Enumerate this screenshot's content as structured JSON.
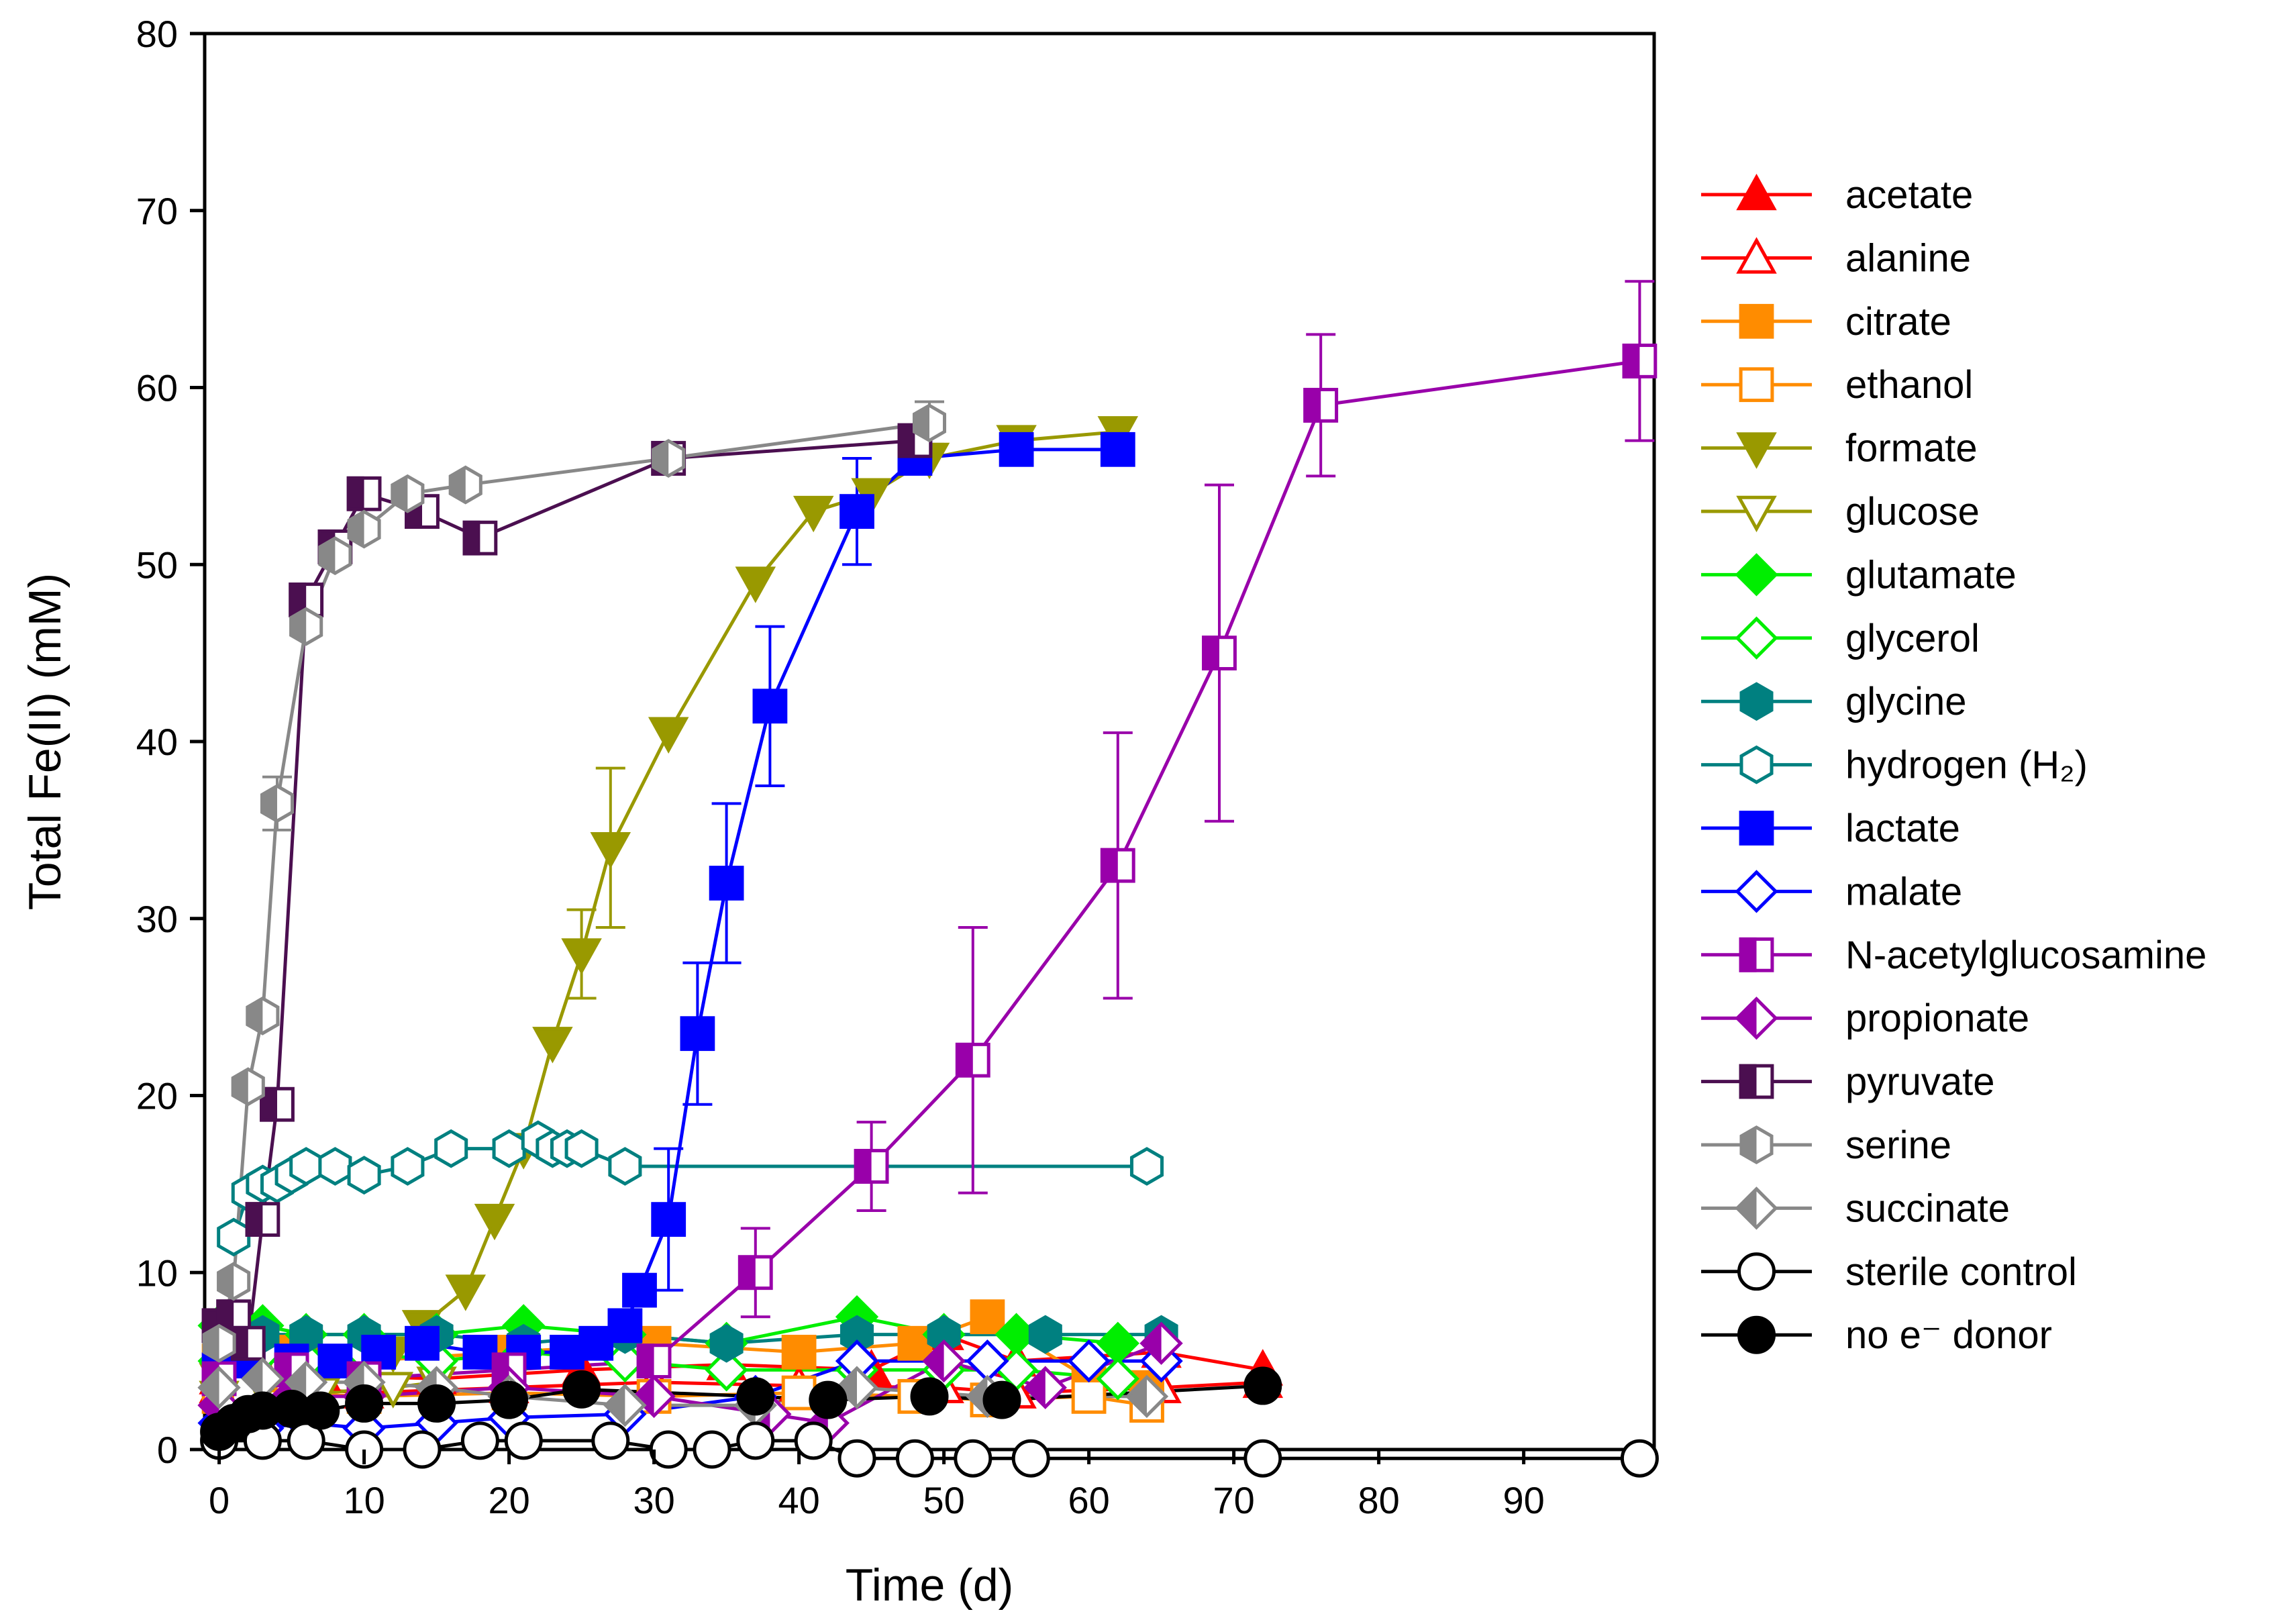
{
  "chart_data": {
    "type": "line",
    "title": "",
    "xlabel": "Time (d)",
    "ylabel": "Total Fe(II) (mM)",
    "xlim": [
      -1,
      99
    ],
    "ylim": [
      0,
      80
    ],
    "xticks": [
      0,
      10,
      20,
      30,
      40,
      50,
      60,
      70,
      80,
      90
    ],
    "yticks": [
      0,
      10,
      20,
      30,
      40,
      50,
      60,
      70,
      80
    ],
    "grid": false,
    "legend_position": "right",
    "series": [
      {
        "name": "acetate",
        "color": "#ff0000",
        "marker": "triangle-up",
        "fill": "filled",
        "x": [
          0,
          1,
          3,
          7,
          15,
          25,
          35,
          45,
          50,
          55,
          65,
          72
        ],
        "y": [
          4,
          5,
          4.5,
          4.2,
          4,
          4.5,
          4.8,
          4.5,
          6.5,
          5,
          5.5,
          4.5
        ]
      },
      {
        "name": "alanine",
        "color": "#ff0000",
        "marker": "triangle-up",
        "fill": "open",
        "x": [
          0,
          2,
          5,
          10,
          20,
          30,
          40,
          50,
          55,
          65,
          72
        ],
        "y": [
          3.5,
          3.8,
          3.5,
          3.2,
          3.5,
          3.8,
          3.6,
          3.5,
          3.2,
          3.5,
          3.8
        ]
      },
      {
        "name": "citrate",
        "color": "#ff8c00",
        "marker": "square",
        "fill": "filled",
        "x": [
          0,
          2,
          5,
          10,
          20,
          30,
          40,
          48,
          53,
          60,
          64
        ],
        "y": [
          5,
          6,
          5.5,
          5,
          5.5,
          6,
          5.5,
          6,
          7.5,
          4,
          3.5
        ]
      },
      {
        "name": "ethanol",
        "color": "#ff8c00",
        "marker": "square",
        "fill": "open",
        "x": [
          0,
          2,
          5,
          10,
          20,
          30,
          40,
          48,
          53,
          60,
          64
        ],
        "y": [
          3,
          3.5,
          3.2,
          3,
          3.2,
          3,
          3.2,
          3,
          2.8,
          3,
          2.5
        ]
      },
      {
        "name": "formate",
        "color": "#999900",
        "marker": "triangle-down",
        "fill": "filled",
        "x": [
          0,
          3,
          7,
          12,
          14,
          17,
          19,
          21,
          23,
          25,
          27,
          31,
          37,
          41,
          45,
          49,
          55,
          62
        ],
        "y": [
          4,
          5,
          5,
          5.5,
          7,
          9,
          13,
          17,
          23,
          28,
          34,
          40.5,
          49,
          53,
          54,
          56,
          57,
          57.5
        ]
      },
      {
        "name": "glucose",
        "color": "#999900",
        "marker": "triangle-down",
        "fill": "open",
        "x": [
          0,
          3,
          7,
          12,
          15
        ],
        "y": [
          3,
          3.5,
          3.2,
          3.5,
          3.8
        ]
      },
      {
        "name": "glutamate",
        "color": "#00ee00",
        "marker": "diamond",
        "fill": "filled",
        "x": [
          0,
          3,
          6,
          10,
          15,
          21,
          28,
          35,
          44,
          50,
          55,
          62
        ],
        "y": [
          7,
          7,
          6.5,
          6.5,
          6.5,
          7,
          6.5,
          6,
          7.5,
          6.5,
          6.5,
          6
        ]
      },
      {
        "name": "glycerol",
        "color": "#00ee00",
        "marker": "diamond",
        "fill": "open",
        "x": [
          0,
          3,
          6,
          10,
          15,
          21,
          28,
          35,
          44,
          50,
          55,
          62
        ],
        "y": [
          5,
          5.5,
          5,
          5.5,
          5,
          5.5,
          5,
          4.5,
          4.5,
          4.5,
          4.5,
          4
        ]
      },
      {
        "name": "glycine",
        "color": "#008080",
        "marker": "hexagon",
        "fill": "filled",
        "x": [
          0,
          3,
          6,
          10,
          15,
          21,
          28,
          35,
          44,
          50,
          57,
          65
        ],
        "y": [
          6,
          6.5,
          6.5,
          6.5,
          6.5,
          6,
          6.5,
          6,
          6.5,
          6.5,
          6.5,
          6.5
        ]
      },
      {
        "name": "hydrogen (H₂)",
        "color": "#008080",
        "marker": "hexagon",
        "fill": "open",
        "x": [
          1,
          2,
          3,
          4,
          5,
          6,
          8,
          10,
          13,
          16,
          20,
          22,
          23,
          24,
          25,
          28,
          64
        ],
        "y": [
          12,
          14.5,
          15,
          15,
          15.5,
          16,
          16,
          15.5,
          16,
          17,
          17,
          17.5,
          17,
          17,
          17,
          16,
          16
        ]
      },
      {
        "name": "lactate",
        "color": "#0000ff",
        "marker": "square",
        "fill": "filled",
        "x": [
          0,
          2,
          5,
          8,
          11,
          14,
          18,
          21,
          24,
          26,
          28,
          29,
          31,
          33,
          35,
          38,
          44,
          48,
          55,
          62
        ],
        "y": [
          4.5,
          5,
          5,
          5,
          5.5,
          6,
          5.5,
          5.5,
          5.5,
          6,
          7,
          9,
          13,
          23.5,
          32,
          42,
          53,
          56,
          56.5,
          56.5
        ]
      },
      {
        "name": "malate",
        "color": "#0000ff",
        "marker": "diamond",
        "fill": "open",
        "x": [
          0,
          3,
          6,
          10,
          15,
          20,
          28,
          37,
          44,
          53,
          60,
          65
        ],
        "y": [
          1.5,
          1.2,
          1.5,
          1.2,
          1.5,
          1.8,
          2,
          3,
          5,
          5,
          5,
          5
        ]
      },
      {
        "name": "N-acetylglucosamine",
        "color": "#9900aa",
        "marker": "square",
        "fill": "half",
        "x": [
          0,
          5,
          10,
          20,
          30,
          37,
          45,
          52,
          62,
          69,
          76,
          98
        ],
        "y": [
          4,
          4.5,
          4,
          4.5,
          5,
          10,
          16,
          22,
          33,
          45,
          59,
          61.5
        ]
      },
      {
        "name": "propionate",
        "color": "#9900aa",
        "marker": "diamond",
        "fill": "half",
        "x": [
          0,
          5,
          10,
          20,
          30,
          38,
          42,
          50,
          57,
          65
        ],
        "y": [
          2.5,
          3,
          3,
          3.5,
          3,
          2,
          1.5,
          5,
          3.5,
          6
        ]
      },
      {
        "name": "pyruvate",
        "color": "#4b0f50",
        "marker": "square",
        "fill": "half",
        "x": [
          0,
          1,
          2,
          3,
          4,
          6,
          8,
          10,
          14,
          18,
          31,
          48
        ],
        "y": [
          7,
          7.5,
          6,
          13,
          19.5,
          48,
          51,
          54,
          53,
          51.5,
          56,
          57
        ]
      },
      {
        "name": "serine",
        "color": "#888888",
        "marker": "hexagon",
        "fill": "half",
        "x": [
          0,
          1,
          2,
          3,
          4,
          6,
          8,
          10,
          13,
          17,
          31,
          49
        ],
        "y": [
          6,
          9.5,
          20.5,
          24.5,
          36.5,
          46.5,
          50.5,
          52,
          54,
          54.5,
          56,
          58
        ]
      },
      {
        "name": "succinate",
        "color": "#888888",
        "marker": "diamond",
        "fill": "half",
        "x": [
          0,
          3,
          6,
          10,
          15,
          20,
          28,
          37,
          44,
          53,
          64
        ],
        "y": [
          3.5,
          4,
          3.8,
          3.8,
          3.5,
          3,
          2.5,
          2.5,
          3.5,
          3,
          3
        ]
      },
      {
        "name": "sterile control",
        "color": "#000000",
        "marker": "circle",
        "fill": "open",
        "x": [
          0,
          3,
          6,
          10,
          14,
          18,
          21,
          27,
          31,
          34,
          37,
          41,
          44,
          48,
          52,
          56,
          72,
          98
        ],
        "y": [
          0.5,
          0.5,
          0.5,
          0,
          0,
          0.5,
          0.5,
          0.5,
          0,
          0,
          0.5,
          0.5,
          -0.5,
          -0.5,
          -0.5,
          -0.5,
          -0.5,
          -0.5
        ]
      },
      {
        "name": "no e⁻ donor",
        "color": "#000000",
        "marker": "circle",
        "fill": "filled",
        "x": [
          0,
          1,
          2,
          3,
          5,
          7,
          10,
          15,
          20,
          25,
          37,
          42,
          49,
          54,
          72
        ],
        "y": [
          1,
          1.5,
          2,
          2.2,
          2.3,
          2.2,
          2.6,
          2.6,
          2.8,
          3.4,
          3,
          2.8,
          3,
          2.8,
          3.6
        ]
      }
    ],
    "error_bars": [
      {
        "series": "formate",
        "x": 25,
        "y": 28,
        "err": 2.5
      },
      {
        "series": "formate",
        "x": 27,
        "y": 34,
        "err": 4.5
      },
      {
        "series": "lactate",
        "x": 31,
        "y": 13,
        "err": 4
      },
      {
        "series": "lactate",
        "x": 33,
        "y": 23.5,
        "err": 4
      },
      {
        "series": "lactate",
        "x": 35,
        "y": 32,
        "err": 4.5
      },
      {
        "series": "lactate",
        "x": 38,
        "y": 42,
        "err": 4.5
      },
      {
        "series": "lactate",
        "x": 44,
        "y": 53,
        "err": 3
      },
      {
        "series": "N-acetylglucosamine",
        "x": 37,
        "y": 10,
        "err": 2.5
      },
      {
        "series": "N-acetylglucosamine",
        "x": 45,
        "y": 16,
        "err": 2.5
      },
      {
        "series": "N-acetylglucosamine",
        "x": 52,
        "y": 22,
        "err": 7.5
      },
      {
        "series": "N-acetylglucosamine",
        "x": 62,
        "y": 33,
        "err": 7.5
      },
      {
        "series": "N-acetylglucosamine",
        "x": 69,
        "y": 45,
        "err": 9.5
      },
      {
        "series": "N-acetylglucosamine",
        "x": 76,
        "y": 59,
        "err": 4
      },
      {
        "series": "N-acetylglucosamine",
        "x": 98,
        "y": 61.5,
        "err": 4.5
      },
      {
        "series": "serine",
        "x": 4,
        "y": 36.5,
        "err": 1.5
      },
      {
        "series": "serine",
        "x": 31,
        "y": 56,
        "err": 0.8
      },
      {
        "series": "serine",
        "x": 49,
        "y": 58,
        "err": 1.2
      }
    ]
  }
}
